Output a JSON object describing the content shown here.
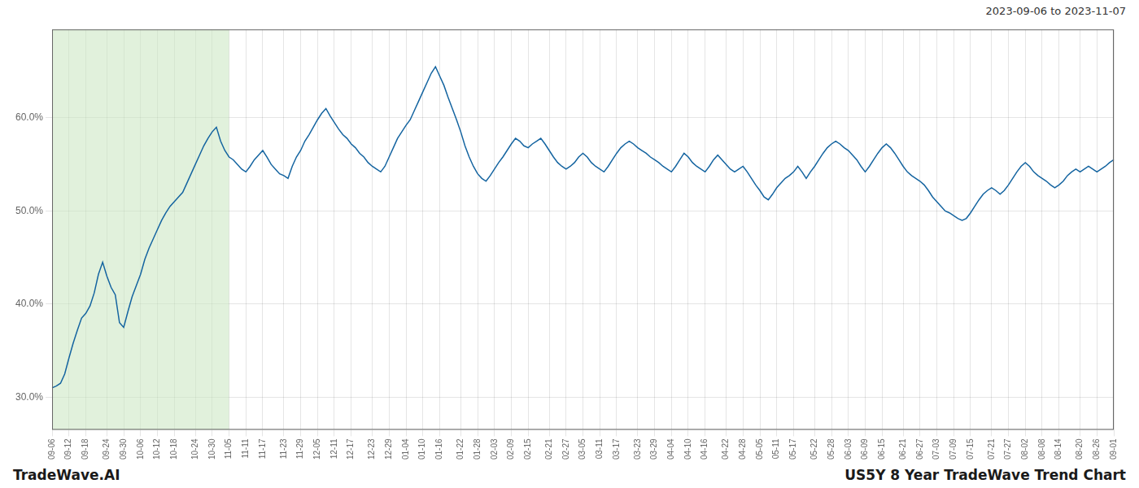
{
  "chart_data": {
    "type": "line",
    "title": "US5Y 8 Year TradeWave Trend Chart",
    "subtitle": "2023-09-06 to 2023-11-07",
    "annotations": [
      {
        "text": "TradeWave.AI"
      }
    ],
    "color": "#1464a0",
    "grid": true,
    "shaded_range": {
      "start": "09-06",
      "end": "11-05",
      "color": "#c8e6c0"
    },
    "ylim": [
      0.265,
      0.695
    ],
    "yticks": [
      {
        "value": 0.3,
        "label": "30.0%"
      },
      {
        "value": 0.4,
        "label": "40.0%"
      },
      {
        "value": 0.5,
        "label": "50.0%"
      },
      {
        "value": 0.6,
        "label": "60.0%"
      }
    ],
    "categories": [
      "09-06",
      null,
      null,
      null,
      "09-12",
      null,
      null,
      null,
      "09-18",
      null,
      null,
      null,
      null,
      "09-24",
      null,
      null,
      null,
      "09-30",
      null,
      null,
      null,
      "10-06",
      null,
      null,
      null,
      "10-12",
      null,
      null,
      null,
      "10-18",
      null,
      null,
      null,
      null,
      "10-24",
      null,
      null,
      null,
      "10-30",
      null,
      null,
      null,
      "11-05",
      null,
      null,
      null,
      "11-11",
      null,
      null,
      null,
      "11-17",
      null,
      null,
      null,
      null,
      "11-23",
      null,
      null,
      null,
      "11-29",
      null,
      null,
      null,
      "12-05",
      null,
      null,
      null,
      "12-11",
      null,
      null,
      null,
      "12-17",
      null,
      null,
      null,
      null,
      "12-23",
      null,
      null,
      null,
      "12-29",
      null,
      null,
      null,
      "01-04",
      null,
      null,
      null,
      "01-10",
      null,
      null,
      null,
      "01-16",
      null,
      null,
      null,
      null,
      "01-22",
      null,
      null,
      null,
      "01-28",
      null,
      null,
      null,
      "02-03",
      null,
      null,
      null,
      "02-09",
      null,
      null,
      null,
      "02-15",
      null,
      null,
      null,
      null,
      "02-21",
      null,
      null,
      null,
      "02-27",
      null,
      null,
      null,
      "03-05",
      null,
      null,
      null,
      "03-11",
      null,
      null,
      null,
      "03-17",
      null,
      null,
      null,
      null,
      "03-23",
      null,
      null,
      null,
      "03-29",
      null,
      null,
      null,
      "04-04",
      null,
      null,
      null,
      "04-10",
      null,
      null,
      null,
      "04-16",
      null,
      null,
      null,
      null,
      "04-22",
      null,
      null,
      null,
      "04-28",
      null,
      null,
      null,
      "05-05",
      null,
      null,
      null,
      "05-11",
      null,
      null,
      null,
      "05-17",
      null,
      null,
      null,
      null,
      "05-22",
      null,
      null,
      null,
      "05-28",
      null,
      null,
      null,
      "06-03",
      null,
      null,
      null,
      "06-09",
      null,
      null,
      null,
      "06-15",
      null,
      null,
      null,
      null,
      "06-21",
      null,
      null,
      null,
      "06-27",
      null,
      null,
      null,
      "07-03",
      null,
      null,
      null,
      "07-09",
      null,
      null,
      null,
      "07-15",
      null,
      null,
      null,
      null,
      "07-21",
      null,
      null,
      null,
      "07-27",
      null,
      null,
      null,
      "08-02",
      null,
      null,
      null,
      "08-08",
      null,
      null,
      null,
      "08-14",
      null,
      null,
      null,
      null,
      "08-20",
      null,
      null,
      null,
      "08-26",
      null,
      null,
      null,
      "09-01"
    ],
    "values": [
      0.31,
      0.312,
      0.315,
      0.325,
      0.342,
      0.358,
      0.372,
      0.385,
      0.39,
      0.398,
      0.412,
      0.432,
      0.445,
      0.43,
      0.418,
      0.41,
      0.38,
      0.375,
      0.392,
      0.408,
      0.42,
      0.432,
      0.448,
      0.46,
      0.47,
      0.48,
      0.49,
      0.498,
      0.505,
      0.51,
      0.515,
      0.52,
      0.53,
      0.54,
      0.55,
      0.56,
      0.57,
      0.578,
      0.585,
      0.59,
      0.575,
      0.565,
      0.558,
      0.555,
      0.55,
      0.545,
      0.542,
      0.548,
      0.555,
      0.56,
      0.565,
      0.558,
      0.55,
      0.545,
      0.54,
      0.538,
      0.535,
      0.548,
      0.558,
      0.565,
      0.575,
      0.582,
      0.59,
      0.598,
      0.605,
      0.61,
      0.602,
      0.595,
      0.588,
      0.582,
      0.578,
      0.572,
      0.568,
      0.562,
      0.558,
      0.552,
      0.548,
      0.545,
      0.542,
      0.548,
      0.558,
      0.568,
      0.578,
      0.585,
      0.592,
      0.598,
      0.608,
      0.618,
      0.628,
      0.638,
      0.648,
      0.655,
      0.645,
      0.635,
      0.622,
      0.61,
      0.598,
      0.585,
      0.57,
      0.558,
      0.548,
      0.54,
      0.535,
      0.532,
      0.538,
      0.545,
      0.552,
      0.558,
      0.565,
      0.572,
      0.578,
      0.575,
      0.57,
      0.568,
      0.572,
      0.575,
      0.578,
      0.572,
      0.565,
      0.558,
      0.552,
      0.548,
      0.545,
      0.548,
      0.552,
      0.558,
      0.562,
      0.558,
      0.552,
      0.548,
      0.545,
      0.542,
      0.548,
      0.555,
      0.562,
      0.568,
      0.572,
      0.575,
      0.572,
      0.568,
      0.565,
      0.562,
      0.558,
      0.555,
      0.552,
      0.548,
      0.545,
      0.542,
      0.548,
      0.555,
      0.562,
      0.558,
      0.552,
      0.548,
      0.545,
      0.542,
      0.548,
      0.555,
      0.56,
      0.555,
      0.55,
      0.545,
      0.542,
      0.545,
      0.548,
      0.542,
      0.535,
      0.528,
      0.522,
      0.515,
      0.512,
      0.518,
      0.525,
      0.53,
      0.535,
      0.538,
      0.542,
      0.548,
      0.542,
      0.535,
      0.542,
      0.548,
      0.555,
      0.562,
      0.568,
      0.572,
      0.575,
      0.572,
      0.568,
      0.565,
      0.56,
      0.555,
      0.548,
      0.542,
      0.548,
      0.555,
      0.562,
      0.568,
      0.572,
      0.568,
      0.562,
      0.555,
      0.548,
      0.542,
      0.538,
      0.535,
      0.532,
      0.528,
      0.522,
      0.515,
      0.51,
      0.505,
      0.5,
      0.498,
      0.495,
      0.492,
      0.49,
      0.492,
      0.498,
      0.505,
      0.512,
      0.518,
      0.522,
      0.525,
      0.522,
      0.518,
      0.522,
      0.528,
      0.535,
      0.542,
      0.548,
      0.552,
      0.548,
      0.542,
      0.538,
      0.535,
      0.532,
      0.528,
      0.525,
      0.528,
      0.532,
      0.538,
      0.542,
      0.545,
      0.542,
      0.545,
      0.548,
      0.545,
      0.542,
      0.545,
      0.548,
      0.552,
      0.555
    ]
  }
}
